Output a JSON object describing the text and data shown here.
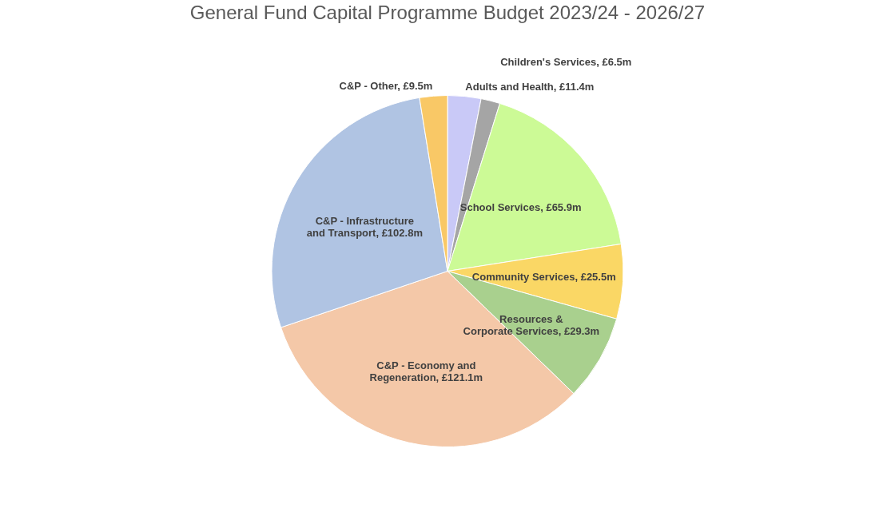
{
  "chart_data": {
    "type": "pie",
    "title": "General Fund Capital Programme Budget 2023/24 - 2026/27",
    "categories": [
      "Adults and Health",
      "Children's Services",
      "School Services",
      "Community Services",
      "Resources & Corporate Services",
      "C&P - Economy and Regeneration",
      "C&P - Infrastructure and Transport",
      "C&P - Other"
    ],
    "values": [
      11.4,
      6.5,
      65.9,
      25.5,
      29.3,
      121.1,
      102.8,
      9.5
    ],
    "value_labels": [
      "£11.4m",
      "£6.5m",
      "£65.9m",
      "£25.5m",
      "£29.3m",
      "£121.1m",
      "£102.8m",
      "£9.5m"
    ],
    "colors": [
      "#c9c9f7",
      "#a5a5a5",
      "#ccfa96",
      "#fad765",
      "#a9d08e",
      "#f4c8a8",
      "#b0c4e3",
      "#f9c866"
    ]
  }
}
